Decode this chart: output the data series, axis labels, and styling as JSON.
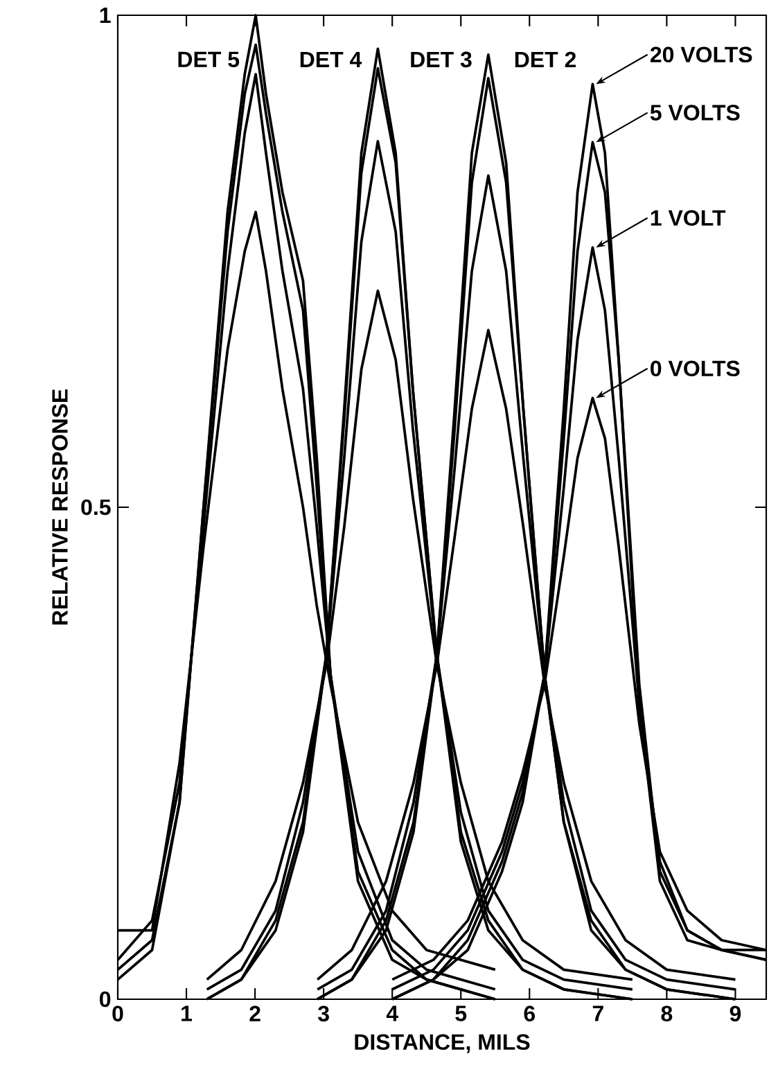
{
  "chart_data": {
    "type": "line",
    "xlabel": "DISTANCE, MILS",
    "ylabel": "RELATIVE RESPONSE",
    "xlim": [
      0,
      9.45
    ],
    "ylim": [
      0,
      1
    ],
    "xticks": [
      0,
      1,
      2,
      3,
      4,
      5,
      6,
      7,
      8,
      9
    ],
    "yticks": [
      0,
      0.5,
      1
    ],
    "annotations": [
      {
        "text": "DET 5",
        "x": 2.01,
        "y": 1.0
      },
      {
        "text": "DET 4",
        "x": 3.79,
        "y": 0.966
      },
      {
        "text": "DET 3",
        "x": 5.4,
        "y": 0.96
      },
      {
        "text": "DET 2",
        "x": 6.92,
        "y": 0.93
      },
      {
        "text": "20 VOLTS",
        "x": 6.92,
        "y": 0.93
      },
      {
        "text": "5 VOLTS",
        "x": 6.92,
        "y": 0.871
      },
      {
        "text": "1 VOLT",
        "x": 6.92,
        "y": 0.764
      },
      {
        "text": "0 VOLTS",
        "x": 6.92,
        "y": 0.611
      }
    ],
    "series": [
      {
        "color": "#000000",
        "x": [
          0,
          0.5,
          0.9,
          1.25,
          1.6,
          1.85,
          2.01,
          2.16,
          2.4,
          2.7,
          2.9,
          3.1,
          3.5,
          4.0,
          4.5,
          5.5
        ],
        "values": [
          0.02,
          0.05,
          0.2,
          0.5,
          0.8,
          0.94,
          1.0,
          0.92,
          0.82,
          0.73,
          0.55,
          0.33,
          0.12,
          0.04,
          0.02,
          0.0
        ]
      },
      {
        "color": "#000000",
        "x": [
          0,
          0.5,
          0.9,
          1.25,
          1.6,
          1.85,
          2.01,
          2.16,
          2.4,
          2.7,
          2.9,
          3.1,
          3.5,
          4.0,
          4.5,
          5.5
        ],
        "values": [
          0.03,
          0.06,
          0.2,
          0.5,
          0.78,
          0.92,
          0.97,
          0.9,
          0.8,
          0.7,
          0.52,
          0.33,
          0.13,
          0.05,
          0.02,
          0.0
        ]
      },
      {
        "color": "#000000",
        "x": [
          0,
          0.5,
          0.9,
          1.25,
          1.6,
          1.85,
          2.01,
          2.16,
          2.4,
          2.7,
          2.9,
          3.1,
          3.5,
          4.0,
          4.5,
          5.5
        ],
        "values": [
          0.04,
          0.08,
          0.22,
          0.48,
          0.74,
          0.88,
          0.94,
          0.86,
          0.74,
          0.62,
          0.48,
          0.33,
          0.15,
          0.06,
          0.03,
          0.01
        ]
      },
      {
        "color": "#000000",
        "x": [
          0,
          0.5,
          0.9,
          1.25,
          1.6,
          1.85,
          2.01,
          2.16,
          2.4,
          2.7,
          2.9,
          3.1,
          3.5,
          4.0,
          4.5,
          5.5
        ],
        "values": [
          0.07,
          0.07,
          0.24,
          0.46,
          0.66,
          0.76,
          0.8,
          0.74,
          0.62,
          0.5,
          0.4,
          0.32,
          0.18,
          0.09,
          0.05,
          0.03
        ]
      },
      {
        "color": "#000000",
        "x": [
          1.3,
          1.8,
          2.3,
          2.7,
          3.04,
          3.3,
          3.55,
          3.79,
          4.05,
          4.3,
          4.65,
          5.0,
          5.4,
          5.9,
          6.5,
          7.5
        ],
        "values": [
          0.0,
          0.02,
          0.07,
          0.17,
          0.35,
          0.6,
          0.86,
          0.966,
          0.86,
          0.62,
          0.35,
          0.16,
          0.07,
          0.03,
          0.01,
          0.0
        ]
      },
      {
        "color": "#000000",
        "x": [
          1.3,
          1.8,
          2.3,
          2.7,
          3.04,
          3.3,
          3.55,
          3.79,
          4.05,
          4.3,
          4.65,
          5.0,
          5.4,
          5.9,
          6.5,
          7.5
        ],
        "values": [
          0.0,
          0.02,
          0.08,
          0.18,
          0.35,
          0.59,
          0.84,
          0.946,
          0.85,
          0.62,
          0.35,
          0.17,
          0.08,
          0.03,
          0.01,
          0.0
        ]
      },
      {
        "color": "#000000",
        "x": [
          1.3,
          1.8,
          2.3,
          2.7,
          3.04,
          3.3,
          3.55,
          3.79,
          4.05,
          4.3,
          4.65,
          5.0,
          5.4,
          5.9,
          6.5,
          7.5
        ],
        "values": [
          0.01,
          0.03,
          0.09,
          0.2,
          0.35,
          0.55,
          0.77,
          0.872,
          0.78,
          0.58,
          0.35,
          0.19,
          0.09,
          0.04,
          0.02,
          0.01
        ]
      },
      {
        "color": "#000000",
        "x": [
          1.3,
          1.8,
          2.3,
          2.7,
          3.04,
          3.3,
          3.55,
          3.79,
          4.05,
          4.3,
          4.65,
          5.0,
          5.4,
          5.9,
          6.5,
          7.5
        ],
        "values": [
          0.02,
          0.05,
          0.12,
          0.22,
          0.34,
          0.48,
          0.64,
          0.72,
          0.65,
          0.51,
          0.34,
          0.22,
          0.12,
          0.06,
          0.03,
          0.02
        ]
      },
      {
        "color": "#000000",
        "x": [
          2.91,
          3.41,
          3.91,
          4.31,
          4.65,
          4.91,
          5.16,
          5.4,
          5.66,
          5.91,
          6.22,
          6.5,
          6.9,
          7.4,
          8.0,
          9.0
        ],
        "values": [
          0.0,
          0.02,
          0.07,
          0.17,
          0.35,
          0.6,
          0.86,
          0.96,
          0.85,
          0.6,
          0.33,
          0.18,
          0.07,
          0.03,
          0.01,
          0.0
        ]
      },
      {
        "color": "#000000",
        "x": [
          2.91,
          3.41,
          3.91,
          4.31,
          4.65,
          4.91,
          5.16,
          5.4,
          5.66,
          5.91,
          6.22,
          6.5,
          6.9,
          7.4,
          8.0,
          9.0
        ],
        "values": [
          0.0,
          0.02,
          0.08,
          0.18,
          0.35,
          0.58,
          0.83,
          0.936,
          0.83,
          0.6,
          0.33,
          0.18,
          0.08,
          0.03,
          0.01,
          0.0
        ]
      },
      {
        "color": "#000000",
        "x": [
          2.91,
          3.41,
          3.91,
          4.31,
          4.65,
          4.91,
          5.16,
          5.4,
          5.66,
          5.91,
          6.22,
          6.5,
          6.9,
          7.4,
          8.0,
          9.0
        ],
        "values": [
          0.01,
          0.03,
          0.09,
          0.2,
          0.35,
          0.54,
          0.74,
          0.837,
          0.74,
          0.55,
          0.33,
          0.2,
          0.09,
          0.04,
          0.02,
          0.01
        ]
      },
      {
        "color": "#000000",
        "x": [
          2.91,
          3.41,
          3.91,
          4.31,
          4.65,
          4.91,
          5.16,
          5.4,
          5.66,
          5.91,
          6.22,
          6.5,
          6.9,
          7.4,
          8.0,
          9.0
        ],
        "values": [
          0.02,
          0.05,
          0.12,
          0.22,
          0.34,
          0.47,
          0.6,
          0.68,
          0.6,
          0.48,
          0.32,
          0.22,
          0.12,
          0.06,
          0.03,
          0.02
        ]
      },
      {
        "color": "#000000",
        "x": [
          4.0,
          4.6,
          5.1,
          5.6,
          5.9,
          6.22,
          6.5,
          6.7,
          6.92,
          7.1,
          7.3,
          7.6,
          7.9,
          8.3,
          8.8,
          9.45
        ],
        "values": [
          0.0,
          0.02,
          0.05,
          0.13,
          0.2,
          0.33,
          0.6,
          0.82,
          0.93,
          0.86,
          0.65,
          0.3,
          0.12,
          0.06,
          0.05,
          0.05
        ]
      },
      {
        "color": "#000000",
        "x": [
          4.0,
          4.6,
          5.1,
          5.6,
          5.9,
          6.22,
          6.5,
          6.7,
          6.92,
          7.1,
          7.3,
          7.6,
          7.9,
          8.3,
          8.8,
          9.45
        ],
        "values": [
          0.0,
          0.02,
          0.06,
          0.14,
          0.21,
          0.33,
          0.57,
          0.76,
          0.871,
          0.82,
          0.65,
          0.32,
          0.13,
          0.07,
          0.05,
          0.04
        ]
      },
      {
        "color": "#000000",
        "x": [
          4.0,
          4.6,
          5.1,
          5.6,
          5.9,
          6.22,
          6.5,
          6.7,
          6.92,
          7.1,
          7.3,
          7.6,
          7.9,
          8.3,
          8.8,
          9.45
        ],
        "values": [
          0.01,
          0.03,
          0.07,
          0.15,
          0.22,
          0.33,
          0.52,
          0.67,
          0.764,
          0.7,
          0.55,
          0.3,
          0.14,
          0.07,
          0.05,
          0.04
        ]
      },
      {
        "color": "#000000",
        "x": [
          4.0,
          4.6,
          5.1,
          5.6,
          5.9,
          6.22,
          6.5,
          6.7,
          6.92,
          7.1,
          7.3,
          7.6,
          7.9,
          8.3,
          8.8,
          9.45
        ],
        "values": [
          0.02,
          0.04,
          0.08,
          0.16,
          0.23,
          0.32,
          0.45,
          0.55,
          0.611,
          0.57,
          0.46,
          0.28,
          0.15,
          0.09,
          0.06,
          0.05
        ]
      }
    ]
  }
}
